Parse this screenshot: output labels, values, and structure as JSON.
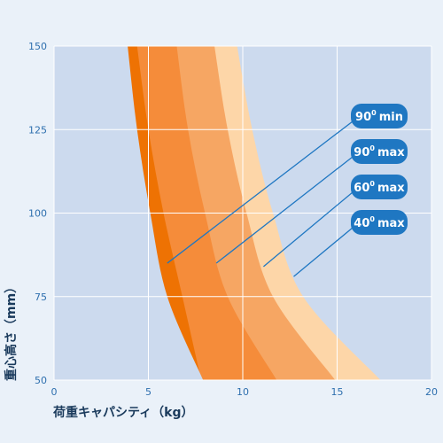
{
  "chart_data": {
    "type": "area",
    "xlabel": "荷重キャパシティ（kg）",
    "ylabel": "重心高さ（mm）",
    "xlim": [
      0,
      20
    ],
    "ylim": [
      50,
      150
    ],
    "xticks": [
      0,
      5,
      10,
      15,
      20
    ],
    "yticks": [
      50,
      75,
      100,
      125,
      150
    ],
    "grid": true,
    "series": [
      {
        "name": "40° max",
        "color": "#fdd6a8",
        "points": [
          [
            9.7,
            150
          ],
          [
            10.5,
            125
          ],
          [
            11.6,
            100
          ],
          [
            13.2,
            75
          ],
          [
            17.3,
            50
          ]
        ]
      },
      {
        "name": "60° max",
        "color": "#f6a663",
        "points": [
          [
            8.5,
            150
          ],
          [
            9.2,
            125
          ],
          [
            10.2,
            100
          ],
          [
            11.6,
            75
          ],
          [
            14.9,
            50
          ]
        ]
      },
      {
        "name": "90° max",
        "color": "#f58c3a",
        "points": [
          [
            6.5,
            150
          ],
          [
            7.1,
            125
          ],
          [
            8.0,
            100
          ],
          [
            9.2,
            75
          ],
          [
            11.8,
            50
          ]
        ]
      },
      {
        "name": "90° min",
        "color": "#ee7203",
        "points": [
          [
            4.4,
            150
          ],
          [
            5.0,
            125
          ],
          [
            5.8,
            100
          ],
          [
            6.8,
            75
          ],
          [
            7.8,
            50
          ]
        ]
      }
    ],
    "callouts": [
      {
        "base": "90",
        "sup": "0",
        "word": "min",
        "target": [
          6.0,
          85
        ]
      },
      {
        "base": "90",
        "sup": "0",
        "word": "max",
        "target": [
          8.6,
          85
        ]
      },
      {
        "base": "60",
        "sup": "0",
        "word": "max",
        "target": [
          11.1,
          84
        ]
      },
      {
        "base": "40",
        "sup": "0",
        "word": "max",
        "target": [
          12.7,
          81
        ]
      }
    ],
    "colors": {
      "background": "#eaf1f9",
      "plot_background": "#ccdaee",
      "grid": "#ffffff",
      "tick_label": "#2e6fae",
      "axis_title": "#1a3a5c",
      "callout_fill": "#1f77c2",
      "callout_line": "#1f77c2"
    }
  }
}
